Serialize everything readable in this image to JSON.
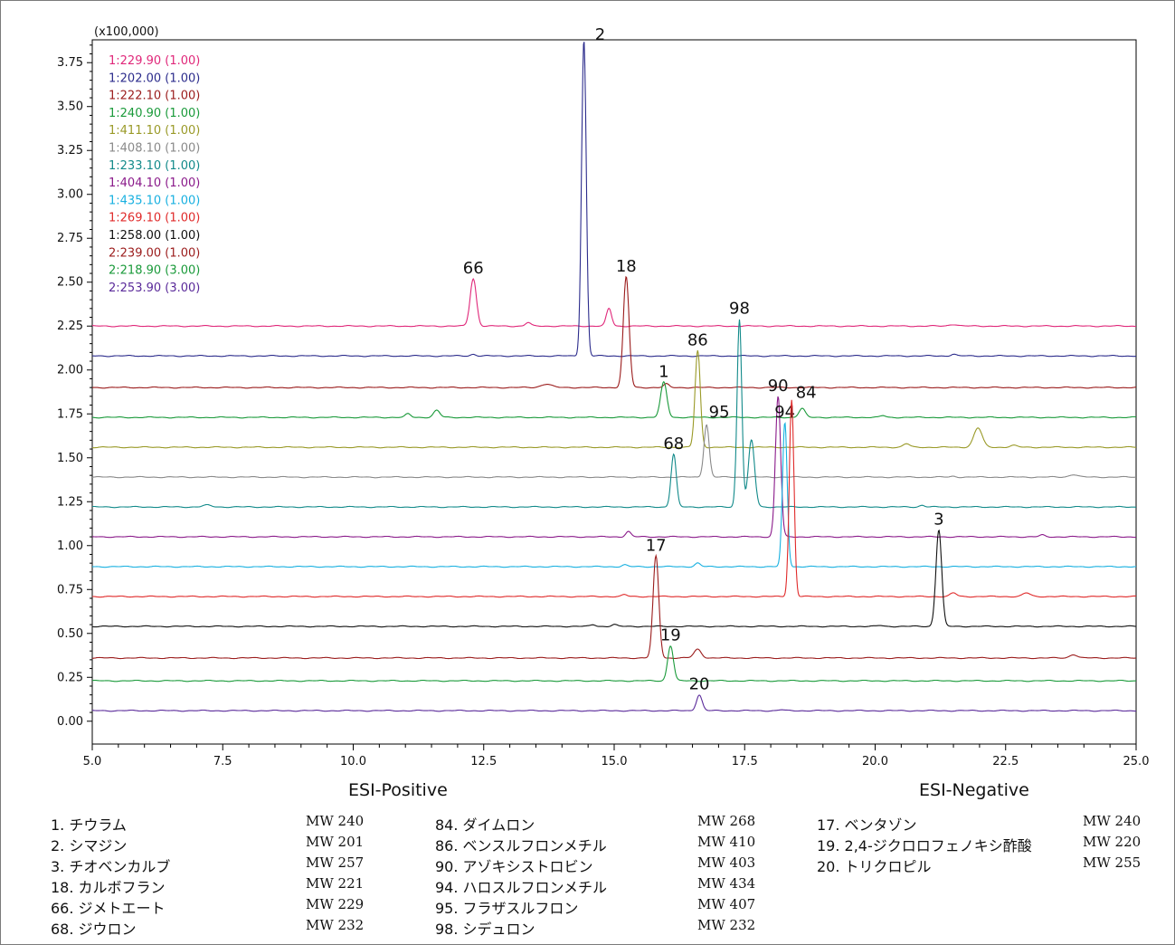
{
  "chart_data": {
    "type": "line",
    "y_multiplier_label": "(x100,000)",
    "xlim": [
      5.0,
      25.0
    ],
    "ylim": [
      -0.13,
      3.88
    ],
    "x_ticks": [
      "5.0",
      "7.5",
      "10.0",
      "12.5",
      "15.0",
      "17.5",
      "20.0",
      "22.5",
      "25.0"
    ],
    "y_ticks": [
      "0.00",
      "0.25",
      "0.50",
      "0.75",
      "1.00",
      "1.25",
      "1.50",
      "1.75",
      "2.00",
      "2.25",
      "2.50",
      "2.75",
      "3.00",
      "3.25",
      "3.50",
      "3.75"
    ],
    "series": [
      {
        "name": "1:229.90 (1.00)",
        "color": "#e0287a",
        "baseline": 2.25,
        "peaks": [
          {
            "x": 12.3,
            "h": 0.27,
            "w": 0.06,
            "label": "66"
          },
          {
            "x": 13.35,
            "h": 0.02,
            "w": 0.05
          },
          {
            "x": 14.9,
            "h": 0.1,
            "w": 0.05
          },
          {
            "x": 21.5,
            "h": 0.01,
            "w": 0.08
          }
        ]
      },
      {
        "name": "1:202.00 (1.00)",
        "color": "#2c2c8c",
        "baseline": 2.08,
        "peaks": [
          {
            "x": 14.42,
            "h": 1.8,
            "w": 0.045,
            "label": "2"
          },
          {
            "x": 12.3,
            "h": 0.01,
            "w": 0.05
          },
          {
            "x": 21.5,
            "h": 0.01,
            "w": 0.05
          }
        ]
      },
      {
        "name": "1:222.10 (1.00)",
        "color": "#9b1c1c",
        "baseline": 1.9,
        "peaks": [
          {
            "x": 15.23,
            "h": 0.63,
            "w": 0.055,
            "label": "18"
          },
          {
            "x": 13.7,
            "h": 0.02,
            "w": 0.1
          },
          {
            "x": 16.0,
            "h": 0.02,
            "w": 0.05
          }
        ]
      },
      {
        "name": "1:240.90 (1.00)",
        "color": "#1a9a3a",
        "baseline": 1.73,
        "peaks": [
          {
            "x": 15.95,
            "h": 0.2,
            "w": 0.06,
            "label": "1"
          },
          {
            "x": 11.05,
            "h": 0.02,
            "w": 0.05
          },
          {
            "x": 11.6,
            "h": 0.04,
            "w": 0.06
          },
          {
            "x": 18.6,
            "h": 0.05,
            "w": 0.06
          },
          {
            "x": 20.15,
            "h": 0.01,
            "w": 0.05
          }
        ]
      },
      {
        "name": "1:411.10 (1.00)",
        "color": "#9a9a28",
        "baseline": 1.56,
        "peaks": [
          {
            "x": 16.6,
            "h": 0.55,
            "w": 0.05,
            "label": "86"
          },
          {
            "x": 20.6,
            "h": 0.02,
            "w": 0.06
          },
          {
            "x": 21.97,
            "h": 0.11,
            "w": 0.08
          },
          {
            "x": 22.65,
            "h": 0.01,
            "w": 0.07
          }
        ]
      },
      {
        "name": "1:408.10 (1.00)",
        "color": "#8a8a8a",
        "baseline": 1.39,
        "peaks": [
          {
            "x": 16.77,
            "h": 0.3,
            "w": 0.05,
            "label": "95"
          },
          {
            "x": 21.5,
            "h": 0.005,
            "w": 0.05
          },
          {
            "x": 23.8,
            "h": 0.015,
            "w": 0.08
          }
        ]
      },
      {
        "name": "1:233.10 (1.00)",
        "color": "#128a8a",
        "baseline": 1.22,
        "peaks": [
          {
            "x": 16.14,
            "h": 0.3,
            "w": 0.05,
            "label": "68"
          },
          {
            "x": 17.4,
            "h": 1.07,
            "w": 0.045,
            "label": "98"
          },
          {
            "x": 17.63,
            "h": 0.38,
            "w": 0.06
          },
          {
            "x": 7.2,
            "h": 0.01,
            "w": 0.08
          },
          {
            "x": 20.9,
            "h": 0.01,
            "w": 0.05
          }
        ]
      },
      {
        "name": "1:404.10 (1.00)",
        "color": "#8a1a8a",
        "baseline": 1.05,
        "peaks": [
          {
            "x": 18.14,
            "h": 0.8,
            "w": 0.05,
            "label": "90"
          },
          {
            "x": 15.27,
            "h": 0.03,
            "w": 0.05
          },
          {
            "x": 23.2,
            "h": 0.01,
            "w": 0.05
          }
        ]
      },
      {
        "name": "1:435.10 (1.00)",
        "color": "#18b0e0",
        "baseline": 0.88,
        "peaks": [
          {
            "x": 18.27,
            "h": 0.82,
            "w": 0.045,
            "label": "94"
          },
          {
            "x": 16.6,
            "h": 0.02,
            "w": 0.05
          },
          {
            "x": 15.2,
            "h": 0.01,
            "w": 0.05
          }
        ]
      },
      {
        "name": "1:269.10 (1.00)",
        "color": "#e02a2a",
        "baseline": 0.71,
        "peaks": [
          {
            "x": 18.4,
            "h": 1.12,
            "w": 0.045,
            "label": "84"
          },
          {
            "x": 15.2,
            "h": 0.01,
            "w": 0.05
          },
          {
            "x": 21.5,
            "h": 0.02,
            "w": 0.06
          },
          {
            "x": 22.9,
            "h": 0.02,
            "w": 0.07
          }
        ]
      },
      {
        "name": "1:258.00 (1.00)",
        "color": "#111111",
        "baseline": 0.54,
        "peaks": [
          {
            "x": 21.22,
            "h": 0.55,
            "w": 0.055,
            "label": "3"
          },
          {
            "x": 14.6,
            "h": 0.01,
            "w": 0.05
          },
          {
            "x": 15.0,
            "h": 0.01,
            "w": 0.05
          },
          {
            "x": 20.1,
            "h": 0.005,
            "w": 0.05
          }
        ]
      },
      {
        "name": "2:239.00 (1.00)",
        "color": "#9b1c1c",
        "baseline": 0.36,
        "peaks": [
          {
            "x": 15.8,
            "h": 0.58,
            "w": 0.055,
            "label": "17"
          },
          {
            "x": 16.6,
            "h": 0.05,
            "w": 0.07
          },
          {
            "x": 23.8,
            "h": 0.02,
            "w": 0.07
          }
        ]
      },
      {
        "name": "2:218.90 (3.00)",
        "color": "#1a9a3a",
        "baseline": 0.23,
        "peaks": [
          {
            "x": 16.08,
            "h": 0.2,
            "w": 0.055,
            "label": "19"
          }
        ]
      },
      {
        "name": "2:253.90 (3.00)",
        "color": "#5a2a9a",
        "baseline": 0.06,
        "peaks": [
          {
            "x": 16.63,
            "h": 0.09,
            "w": 0.055,
            "label": "20"
          },
          {
            "x": 18.2,
            "h": 0.005,
            "w": 0.05
          }
        ]
      }
    ]
  },
  "sections": {
    "positive": "ESI-Positive",
    "negative": "ESI-Negative"
  },
  "compounds": {
    "col1": [
      {
        "name": "1. チウラム",
        "mw": "MW 240"
      },
      {
        "name": "2. シマジン",
        "mw": "MW 201"
      },
      {
        "name": "3. チオベンカルブ",
        "mw": "MW 257"
      },
      {
        "name": "18. カルボフラン",
        "mw": "MW 221"
      },
      {
        "name": "66. ジメトエート",
        "mw": "MW 229"
      },
      {
        "name": "68. ジウロン",
        "mw": "MW 232"
      }
    ],
    "col2": [
      {
        "name": "84. ダイムロン",
        "mw": "MW 268"
      },
      {
        "name": "86. ベンスルフロンメチル",
        "mw": "MW 410"
      },
      {
        "name": "90. アゾキシストロビン",
        "mw": "MW 403"
      },
      {
        "name": "94. ハロスルフロンメチル",
        "mw": "MW 434"
      },
      {
        "name": "95. フラザスルフロン",
        "mw": "MW 407"
      },
      {
        "name": "98. シデュロン",
        "mw": "MW 232"
      }
    ],
    "col3": [
      {
        "name": "17. ベンタゾン",
        "mw": "MW 240"
      },
      {
        "name": "19. 2,4-ジクロロフェノキシ酢酸",
        "mw": "MW 220"
      },
      {
        "name": "20. トリクロピル",
        "mw": "MW 255"
      }
    ]
  }
}
